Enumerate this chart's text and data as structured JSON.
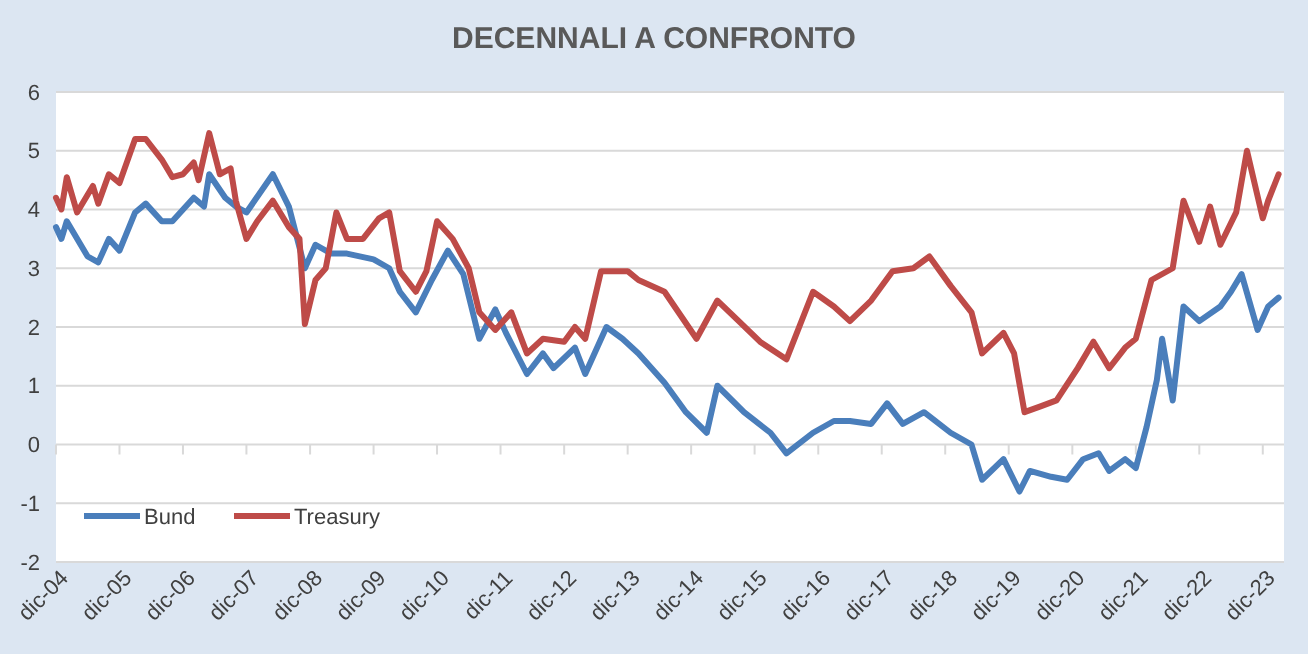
{
  "chart_data": {
    "type": "line",
    "title": "DECENNALI A CONFRONTO",
    "ylim": [
      -2,
      6
    ],
    "yticks": [
      -2,
      -1,
      0,
      1,
      2,
      3,
      4,
      5,
      6
    ],
    "xlim": [
      "2004-12",
      "2024-04"
    ],
    "xticks": [
      {
        "value": "2004-12",
        "label": "dic-04"
      },
      {
        "value": "2005-12",
        "label": "dic-05"
      },
      {
        "value": "2006-12",
        "label": "dic-06"
      },
      {
        "value": "2007-12",
        "label": "dic-07"
      },
      {
        "value": "2008-12",
        "label": "dic-08"
      },
      {
        "value": "2009-12",
        "label": "dic-09"
      },
      {
        "value": "2010-12",
        "label": "dic-10"
      },
      {
        "value": "2011-12",
        "label": "dic-11"
      },
      {
        "value": "2012-12",
        "label": "dic-12"
      },
      {
        "value": "2013-12",
        "label": "dic-13"
      },
      {
        "value": "2014-12",
        "label": "dic-14"
      },
      {
        "value": "2015-12",
        "label": "dic-15"
      },
      {
        "value": "2016-12",
        "label": "dic-16"
      },
      {
        "value": "2017-12",
        "label": "dic-17"
      },
      {
        "value": "2018-12",
        "label": "dic-18"
      },
      {
        "value": "2019-12",
        "label": "dic-19"
      },
      {
        "value": "2020-12",
        "label": "dic-20"
      },
      {
        "value": "2021-12",
        "label": "dic-21"
      },
      {
        "value": "2022-12",
        "label": "dic-22"
      },
      {
        "value": "2023-12",
        "label": "dic-23"
      }
    ],
    "grid": "y",
    "legend": "bottom left",
    "marker": "none",
    "line_style": "solid",
    "series": [
      {
        "name": "Bund",
        "color": "#4a7ebb",
        "x": [
          "2004-12",
          "2005-01",
          "2005-02",
          "2005-06",
          "2005-08",
          "2005-10",
          "2005-12",
          "2006-03",
          "2006-05",
          "2006-08",
          "2006-10",
          "2007-02",
          "2007-04",
          "2007-05",
          "2007-08",
          "2007-10",
          "2007-12",
          "2008-05",
          "2008-08",
          "2008-11",
          "2009-01",
          "2009-04",
          "2009-07",
          "2009-12",
          "2010-03",
          "2010-05",
          "2010-08",
          "2010-11",
          "2011-02",
          "2011-05",
          "2011-08",
          "2011-11",
          "2012-01",
          "2012-05",
          "2012-08",
          "2012-10",
          "2013-02",
          "2013-04",
          "2013-08",
          "2013-11",
          "2014-02",
          "2014-07",
          "2014-11",
          "2015-03",
          "2015-05",
          "2015-10",
          "2016-03",
          "2016-06",
          "2016-11",
          "2017-03",
          "2017-06",
          "2017-10",
          "2018-01",
          "2018-04",
          "2018-08",
          "2019-01",
          "2019-05",
          "2019-07",
          "2019-11",
          "2020-02",
          "2020-04",
          "2020-08",
          "2020-11",
          "2021-02",
          "2021-05",
          "2021-07",
          "2021-10",
          "2021-12",
          "2022-02",
          "2022-04",
          "2022-05",
          "2022-07",
          "2022-09",
          "2022-12",
          "2023-04",
          "2023-06",
          "2023-08",
          "2023-11",
          "2024-01",
          "2024-03"
        ],
        "values": [
          3.7,
          3.5,
          3.8,
          3.2,
          3.1,
          3.5,
          3.3,
          3.95,
          4.1,
          3.8,
          3.8,
          4.2,
          4.05,
          4.6,
          4.2,
          4.05,
          3.95,
          4.6,
          4.05,
          3.0,
          3.4,
          3.25,
          3.25,
          3.15,
          3.0,
          2.6,
          2.25,
          2.8,
          3.3,
          2.9,
          1.8,
          2.3,
          1.9,
          1.2,
          1.55,
          1.3,
          1.65,
          1.2,
          2.0,
          1.8,
          1.55,
          1.05,
          0.55,
          0.2,
          1.0,
          0.55,
          0.2,
          -0.15,
          0.2,
          0.4,
          0.4,
          0.35,
          0.7,
          0.35,
          0.55,
          0.2,
          0.0,
          -0.6,
          -0.25,
          -0.8,
          -0.45,
          -0.55,
          -0.6,
          -0.25,
          -0.15,
          -0.45,
          -0.25,
          -0.4,
          0.3,
          1.1,
          1.8,
          0.75,
          2.35,
          2.1,
          2.35,
          2.6,
          2.9,
          1.95,
          2.35,
          2.5
        ]
      },
      {
        "name": "Treasury",
        "color": "#be4b48",
        "x": [
          "2004-12",
          "2005-01",
          "2005-02",
          "2005-04",
          "2005-07",
          "2005-08",
          "2005-10",
          "2005-12",
          "2006-03",
          "2006-05",
          "2006-08",
          "2006-10",
          "2006-12",
          "2007-02",
          "2007-03",
          "2007-05",
          "2007-07",
          "2007-09",
          "2007-10",
          "2007-12",
          "2008-02",
          "2008-05",
          "2008-08",
          "2008-10",
          "2008-11",
          "2009-01",
          "2009-03",
          "2009-05",
          "2009-07",
          "2009-10",
          "2010-01",
          "2010-03",
          "2010-05",
          "2010-08",
          "2010-10",
          "2010-12",
          "2011-03",
          "2011-06",
          "2011-08",
          "2011-11",
          "2012-02",
          "2012-05",
          "2012-08",
          "2012-12",
          "2013-02",
          "2013-04",
          "2013-07",
          "2013-12",
          "2014-02",
          "2014-07",
          "2015-01",
          "2015-05",
          "2015-09",
          "2016-01",
          "2016-06",
          "2016-11",
          "2017-03",
          "2017-06",
          "2017-10",
          "2018-02",
          "2018-06",
          "2018-09",
          "2019-01",
          "2019-05",
          "2019-07",
          "2019-11",
          "2020-01",
          "2020-03",
          "2020-06",
          "2020-09",
          "2021-01",
          "2021-04",
          "2021-07",
          "2021-10",
          "2021-12",
          "2022-03",
          "2022-07",
          "2022-09",
          "2022-12",
          "2023-02",
          "2023-04",
          "2023-07",
          "2023-09",
          "2023-12",
          "2024-01",
          "2024-03"
        ],
        "values": [
          4.2,
          4.0,
          4.55,
          3.95,
          4.4,
          4.1,
          4.6,
          4.45,
          5.2,
          5.2,
          4.85,
          4.55,
          4.6,
          4.8,
          4.5,
          5.3,
          4.6,
          4.7,
          4.15,
          3.5,
          3.8,
          4.15,
          3.7,
          3.5,
          2.05,
          2.8,
          3.0,
          3.95,
          3.5,
          3.5,
          3.85,
          3.95,
          2.95,
          2.6,
          2.95,
          3.8,
          3.5,
          3.0,
          2.25,
          1.95,
          2.25,
          1.55,
          1.8,
          1.75,
          2.0,
          1.8,
          2.95,
          2.95,
          2.8,
          2.6,
          1.8,
          2.45,
          2.1,
          1.75,
          1.45,
          2.6,
          2.35,
          2.1,
          2.45,
          2.95,
          3.0,
          3.2,
          2.7,
          2.25,
          1.55,
          1.9,
          1.55,
          0.55,
          0.65,
          0.75,
          1.3,
          1.75,
          1.3,
          1.65,
          1.8,
          2.8,
          3.0,
          4.15,
          3.45,
          4.05,
          3.4,
          3.95,
          5.0,
          3.85,
          4.15,
          4.6
        ]
      }
    ]
  }
}
